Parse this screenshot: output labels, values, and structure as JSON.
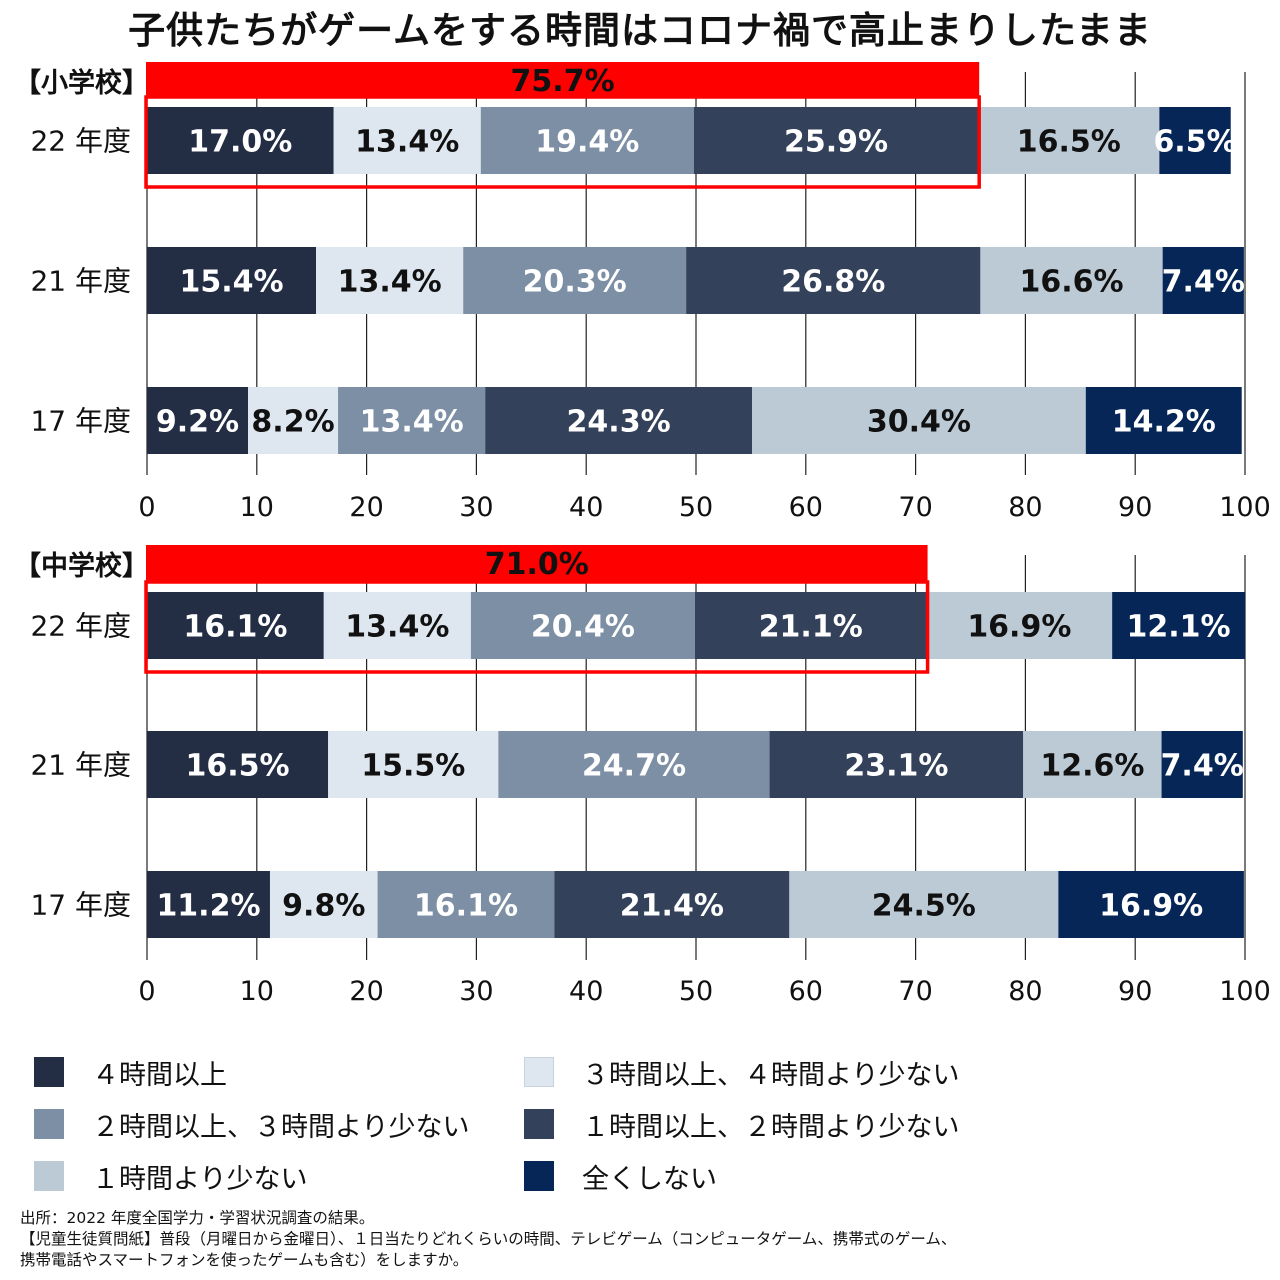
{
  "title": "子供たちがゲームをする時間はコロナ禍で高止まりしたまま",
  "chart_data": [
    {
      "type": "bar",
      "orientation": "horizontal-stacked",
      "section_label": "【小学校】",
      "categories": [
        "22 年度",
        "21 年度",
        "17 年度"
      ],
      "series": [
        {
          "name": "４時間以上",
          "values": [
            17.0,
            15.4,
            9.2
          ]
        },
        {
          "name": "３時間以上、４時間より少ない",
          "values": [
            13.4,
            13.4,
            8.2
          ]
        },
        {
          "name": "２時間以上、３時間より少ない",
          "values": [
            19.4,
            20.3,
            13.4
          ]
        },
        {
          "name": "１時間以上、２時間より少ない",
          "values": [
            25.9,
            26.8,
            24.3
          ]
        },
        {
          "name": "１時間より少ない",
          "values": [
            16.5,
            16.6,
            30.4
          ]
        },
        {
          "name": "全くしない",
          "values": [
            6.5,
            7.4,
            14.2
          ]
        }
      ],
      "highlight": {
        "label": "75.7%",
        "value": 75.7,
        "row": "22 年度"
      },
      "xlim": [
        0,
        100
      ],
      "xticks": [
        0,
        10,
        20,
        30,
        40,
        50,
        60,
        70,
        80,
        90,
        100
      ],
      "grid": true
    },
    {
      "type": "bar",
      "orientation": "horizontal-stacked",
      "section_label": "【中学校】",
      "categories": [
        "22 年度",
        "21 年度",
        "17 年度"
      ],
      "series": [
        {
          "name": "４時間以上",
          "values": [
            16.1,
            16.5,
            11.2
          ]
        },
        {
          "name": "３時間以上、４時間より少ない",
          "values": [
            13.4,
            15.5,
            9.8
          ]
        },
        {
          "name": "２時間以上、３時間より少ない",
          "values": [
            20.4,
            24.7,
            16.1
          ]
        },
        {
          "name": "１時間以上、２時間より少ない",
          "values": [
            21.1,
            23.1,
            21.4
          ]
        },
        {
          "name": "１時間より少ない",
          "values": [
            16.9,
            12.6,
            24.5
          ]
        },
        {
          "name": "全くしない",
          "values": [
            12.1,
            7.4,
            16.9
          ]
        }
      ],
      "highlight": {
        "label": "71.0%",
        "value": 71.0,
        "row": "22 年度"
      },
      "xlim": [
        0,
        100
      ],
      "xticks": [
        0,
        10,
        20,
        30,
        40,
        50,
        60,
        70,
        80,
        90,
        100
      ],
      "grid": true
    }
  ],
  "series_colors": [
    "#232e45",
    "#dee7f0",
    "#7c8fa4",
    "#33415a",
    "#bccad5",
    "#062657"
  ],
  "label_colors": [
    "#ffffff",
    "#111111",
    "#ffffff",
    "#ffffff",
    "#111111",
    "#ffffff"
  ],
  "highlight_color": "#ff0000",
  "legend": {
    "placement": "bottom",
    "items": [
      {
        "label": "４時間以上"
      },
      {
        "label": "３時間以上、４時間より少ない"
      },
      {
        "label": "２時間以上、３時間より少ない"
      },
      {
        "label": "１時間以上、２時間より少ない"
      },
      {
        "label": "１時間より少ない"
      },
      {
        "label": "全くしない"
      }
    ]
  },
  "footer": {
    "line1": "出所：2022 年度全国学力・学習状況調査の結果。",
    "line2": "【児童生徒質問紙】普段（月曜日から金曜日）、１日当たりどれくらいの時間、テレビゲーム（コンピュータゲーム、携帯式のゲーム、",
    "line3": "携帯電話やスマートフォンを使ったゲームも含む）をしますか。"
  }
}
